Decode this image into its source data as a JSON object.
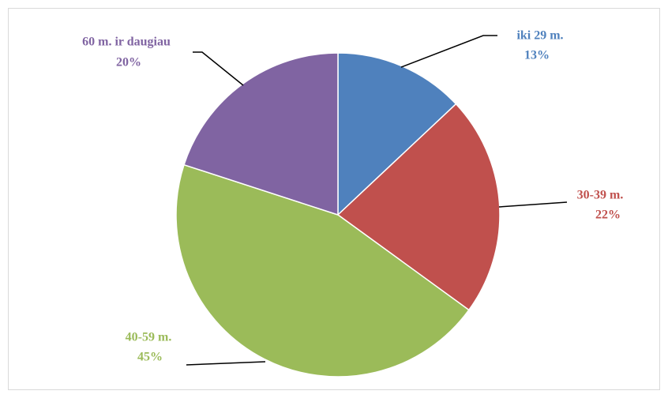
{
  "chart_data": {
    "type": "pie",
    "categories": [
      "iki 29 m.",
      "30-39 m.",
      "40-59 m.",
      "60 m. ir daugiau"
    ],
    "values": [
      13,
      22,
      45,
      20
    ],
    "value_labels": [
      "13%",
      "22%",
      "45%",
      "20%"
    ],
    "colors": [
      "#4f81bd",
      "#c0504d",
      "#9bbb59",
      "#8064a2"
    ]
  }
}
